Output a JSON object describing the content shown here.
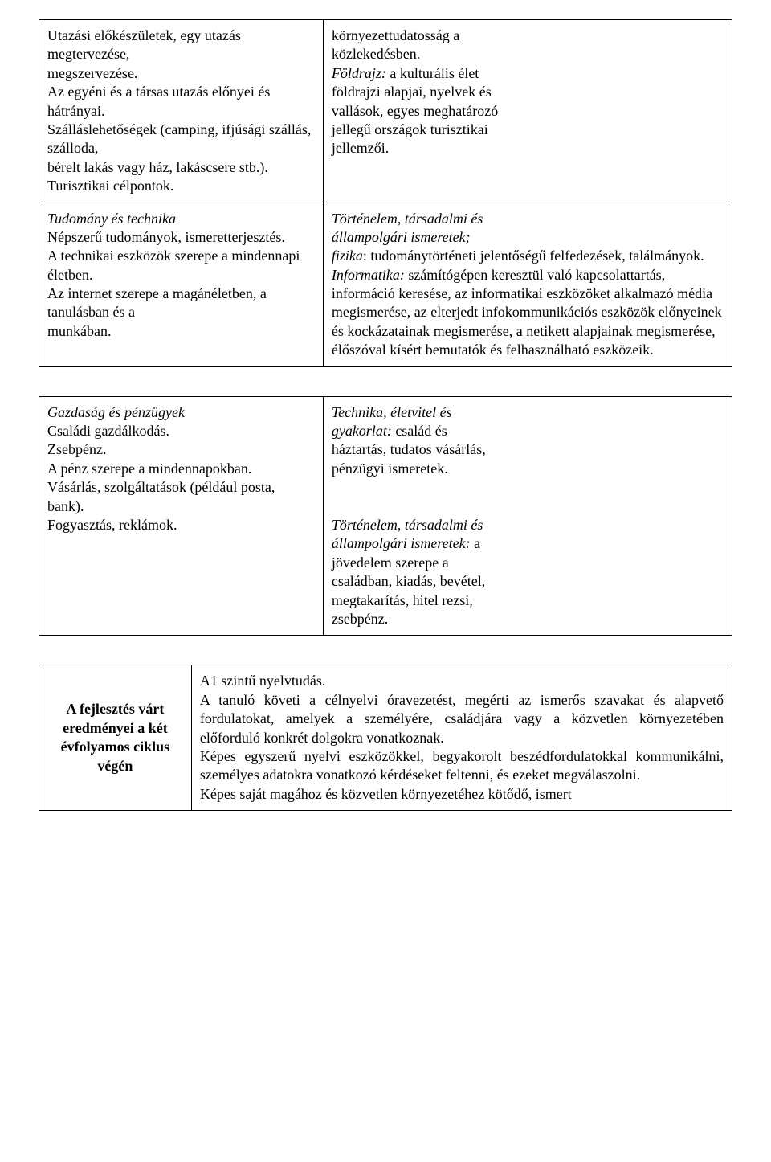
{
  "table1": {
    "row1": {
      "left": "Utazási előkészületek, egy utazás megtervezése,\nmegszervezése.\nAz egyéni és a társas utazás előnyei és hátrányai.\nSzálláslehetőségek (camping, ifjúsági szállás, szálloda,\nbérelt lakás vagy ház, lakáscsere stb.).\nTurisztikai célpontok.",
      "right_plain1": "környezettudatosság a\nközlekedésben.",
      "right_italic1": "Földrajz:",
      "right_plain2": " a kulturális élet\nföldrajzi alapjai, nyelvek és\nvallások, egyes meghatározó\njellegű országok turisztikai\njellemzői."
    },
    "row2": {
      "left_italic": "Tudomány és technika",
      "left_plain": "Népszerű tudományok, ismeretterjesztés.\nA technikai eszközök szerepe a mindennapi életben.\nAz internet szerepe a magánéletben, a tanulásban és a\nmunkában.",
      "right_italic1": "Történelem, társadalmi és\nállampolgári ismeretek;\nfizika",
      "right_plain1": ": tudománytörténeti jelentőségű felfedezések, találmányok.",
      "right_italic2": "Informatika:",
      "right_plain2": " számítógépen keresztül való kapcsolattartás, információ keresése, az informatikai eszközöket alkalmazó média megismerése, az elterjedt infokommunikációs eszközök előnyeinek és kockázatainak megismerése, a netikett alapjainak megismerése, élőszóval kísért bemutatók és felhasználható eszközeik."
    }
  },
  "table2": {
    "row1": {
      "left_italic": "Gazdaság és pénzügyek",
      "left_plain": "Családi gazdálkodás.\nZsebpénz.\nA pénz szerepe a mindennapokban.\nVásárlás, szolgáltatások (például posta, bank).\nFogyasztás, reklámok.",
      "right_italic1": "Technika, életvitel és\ngyakorlat:",
      "right_plain1": " család és\nháztartás, tudatos vásárlás,\npénzügyi ismeretek.",
      "right_italic2": "Történelem, társadalmi és\nállampolgári ismeretek:",
      "right_plain2": " a\njövedelem szerepe a\ncsaládban, kiadás, bevétel,\nmegtakarítás, hitel rezsi,\nzsebpénz."
    }
  },
  "table3": {
    "left": "A fejlesztés várt eredményei a két évfolyamos ciklus végén",
    "right": "A1 szintű nyelvtudás.\nA tanuló követi a célnyelvi óravezetést, megérti az ismerős szavakat és alapvető fordulatokat, amelyek a személyére, családjára vagy a közvetlen környezetében előforduló konkrét dolgokra vonatkoznak.\nKépes egyszerű nyelvi eszközökkel, begyakorolt beszédfordulatokkal kommunikálni, személyes adatokra vonatkozó kérdéseket feltenni, és ezeket megválaszolni.\nKépes saját magához és közvetlen környezetéhez kötődő, ismert"
  }
}
